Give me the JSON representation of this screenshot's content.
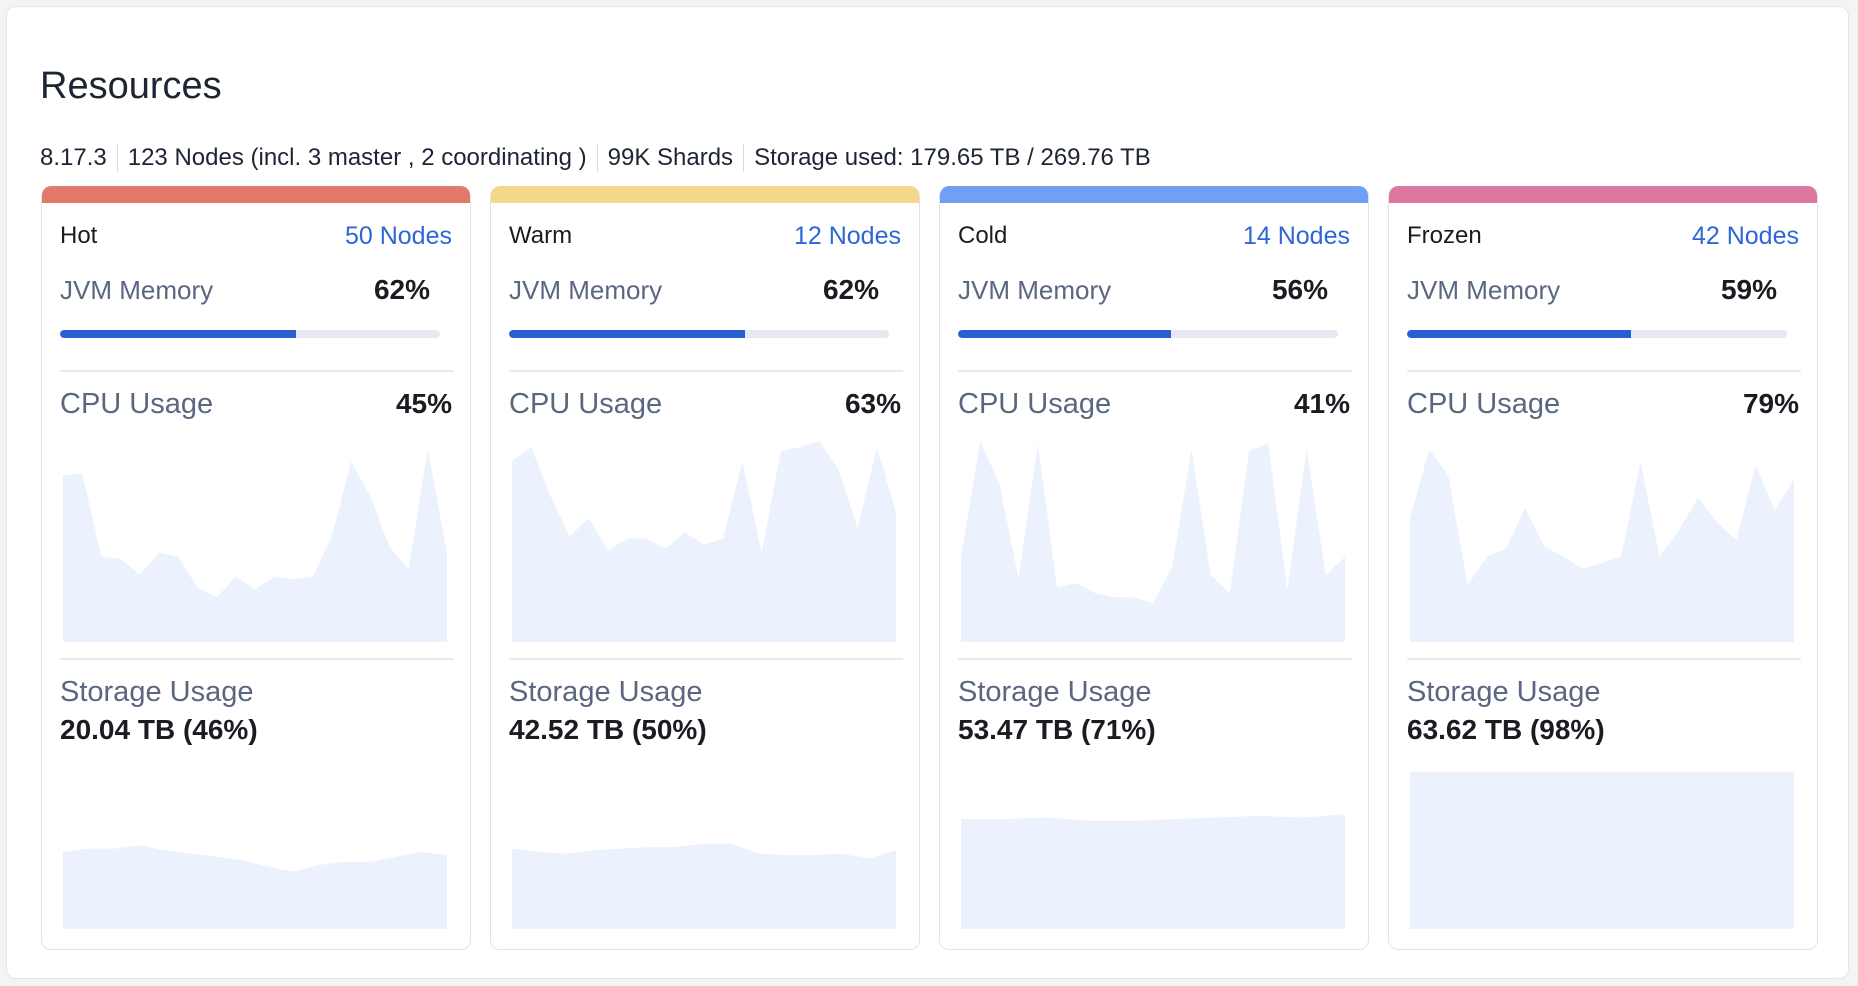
{
  "title": "Resources",
  "summary": [
    "8.17.3",
    "123 Nodes (incl. 3 master , 2 coordinating )",
    "99K Shards",
    "Storage used: 179.65 TB / 269.76 TB"
  ],
  "labels": {
    "jvm_memory": "JVM Memory",
    "cpu_usage": "CPU Usage",
    "storage_usage": "Storage Usage"
  },
  "colors": {
    "node_link": "#2f66d6",
    "progress_fill": "#2a5fd3",
    "chart_fill": "#ecf2fd"
  },
  "tiers": [
    {
      "name": "Hot",
      "nodes": "50 Nodes",
      "color": "#e2796b",
      "jvm_memory": "62%",
      "jvm_memory_value": 62,
      "cpu_usage": "45%",
      "storage_usage": "20.04 TB (46%)",
      "cpu_series": [
        82,
        83,
        42,
        41,
        33,
        44,
        42,
        27,
        22,
        32,
        26,
        32,
        31,
        32,
        52,
        89,
        72,
        47,
        36,
        95,
        44
      ],
      "storage_series": [
        47,
        49,
        49,
        51,
        48,
        46,
        44,
        42,
        38,
        35,
        39,
        41,
        41,
        44,
        47,
        45
      ]
    },
    {
      "name": "Warm",
      "nodes": "12 Nodes",
      "color": "#f5d78a",
      "jvm_memory": "62%",
      "jvm_memory_value": 62,
      "cpu_usage": "63%",
      "storage_usage": "42.52 TB (50%)",
      "cpu_series": [
        89,
        96,
        72,
        52,
        61,
        45,
        51,
        51,
        46,
        54,
        48,
        51,
        89,
        44,
        94,
        96,
        99,
        85,
        56,
        96,
        64
      ],
      "storage_series": [
        49,
        47,
        46,
        48,
        49,
        50,
        50,
        52,
        52,
        46,
        45,
        45,
        46,
        43,
        48
      ]
    },
    {
      "name": "Cold",
      "nodes": "14 Nodes",
      "color": "#6fa0f3",
      "jvm_memory": "56%",
      "jvm_memory_value": 56,
      "cpu_usage": "41%",
      "storage_usage": "53.47 TB (71%)",
      "cpu_series": [
        42,
        99,
        78,
        31,
        98,
        27,
        29,
        24,
        22,
        22,
        19,
        37,
        95,
        33,
        24,
        94,
        98,
        26,
        95,
        33,
        42
      ],
      "storage_series": [
        67,
        67,
        68,
        66,
        66,
        67,
        68,
        69,
        68,
        70
      ]
    },
    {
      "name": "Frozen",
      "nodes": "42 Nodes",
      "color": "#de779f",
      "jvm_memory": "59%",
      "jvm_memory_value": 59,
      "cpu_usage": "79%",
      "storage_usage": "63.62 TB (98%)",
      "cpu_series": [
        61,
        95,
        82,
        28,
        42,
        46,
        66,
        47,
        42,
        36,
        39,
        42,
        89,
        42,
        55,
        71,
        59,
        50,
        87,
        65,
        80
      ],
      "storage_series": [
        96,
        96,
        96,
        96,
        96,
        96,
        96,
        96,
        96,
        96
      ]
    }
  ]
}
